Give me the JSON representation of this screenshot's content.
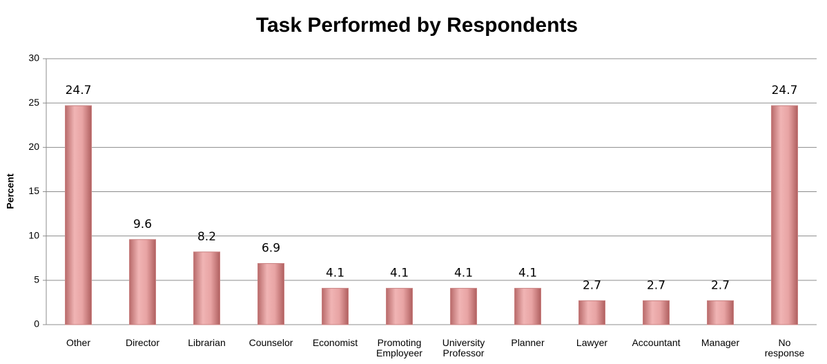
{
  "chart_data": {
    "type": "bar",
    "title": "Task Performed by Respondents",
    "y_label": "Percent",
    "categories": [
      "Other",
      "Director",
      "Librarian",
      "Counselor",
      "Economist",
      "Promoting Employeer",
      "University Professor",
      "Planner",
      "Lawyer",
      "Accountant",
      "Manager",
      "No response"
    ],
    "values": [
      24.7,
      9.6,
      8.2,
      6.9,
      4.1,
      4.1,
      4.1,
      4.1,
      2.7,
      2.7,
      2.7,
      24.7
    ],
    "color": "#e29a9a",
    "ylim": [
      0,
      30
    ],
    "yticks": [
      0,
      5,
      10,
      15,
      20,
      25,
      30
    ],
    "grid": true
  }
}
